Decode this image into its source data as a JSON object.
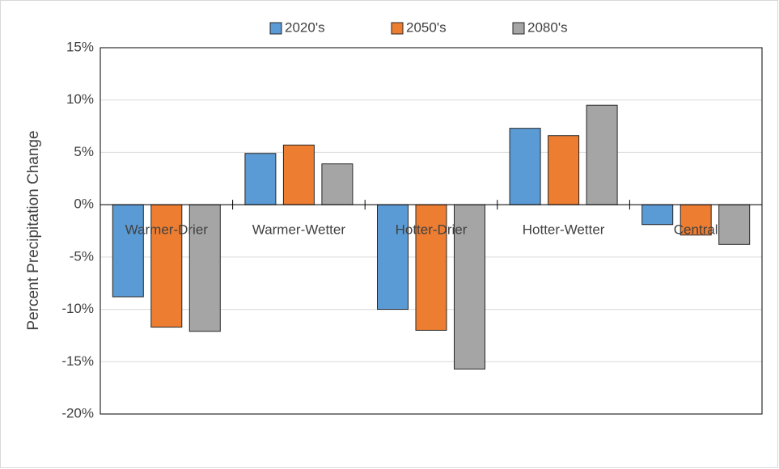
{
  "chart_data": {
    "type": "bar",
    "y_label": "Percent Precipitation Change",
    "categories": [
      "Warmer-Drier",
      "Warmer-Wetter",
      "Hotter-Drier",
      "Hotter-Wetter",
      "Central"
    ],
    "series": [
      {
        "name": "2020's",
        "color": "#5b9bd5",
        "values": [
          -8.8,
          4.9,
          -10.0,
          7.3,
          -1.9
        ]
      },
      {
        "name": "2050's",
        "color": "#ed7d31",
        "values": [
          -11.7,
          5.7,
          -12.0,
          6.6,
          -2.9
        ]
      },
      {
        "name": "2080's",
        "color": "#a5a5a5",
        "values": [
          -12.1,
          3.9,
          -15.7,
          9.5,
          -3.8
        ]
      }
    ],
    "ylim": [
      -20,
      15
    ],
    "yticks": [
      {
        "value": -20,
        "label": "-20%"
      },
      {
        "value": -15,
        "label": "-15%"
      },
      {
        "value": -10,
        "label": "-10%"
      },
      {
        "value": -5,
        "label": "-5%"
      },
      {
        "value": 0,
        "label": "0%"
      },
      {
        "value": 5,
        "label": "5%"
      },
      {
        "value": 10,
        "label": "10%"
      },
      {
        "value": 15,
        "label": "15%"
      }
    ],
    "grid": true,
    "legend": "top"
  }
}
